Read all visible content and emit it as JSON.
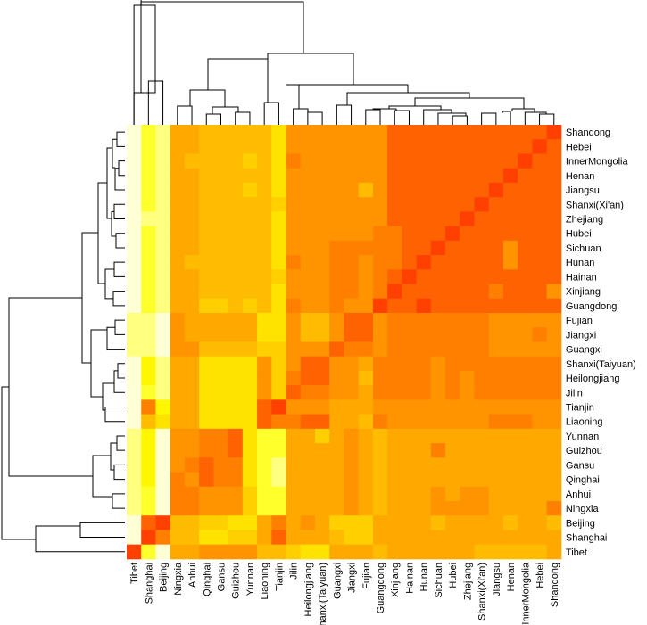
{
  "chart_data": {
    "type": "heatmap",
    "title": "",
    "xlabel": "",
    "ylabel": "",
    "row_labels": [
      "Shandong",
      "Hebei",
      "InnerMongolia",
      "Henan",
      "Jiangsu",
      "Shanxi(Xi'an)",
      "Zhejiang",
      "Hubei",
      "Sichuan",
      "Hunan",
      "Hainan",
      "Xinjiang",
      "Guangdong",
      "Fujian",
      "Jiangxi",
      "Guangxi",
      "Shanxi(Taiyuan)",
      "Heilongjiang",
      "Jilin",
      "Tianjin",
      "Liaoning",
      "Yunnan",
      "Guizhou",
      "Gansu",
      "Qinghai",
      "Anhui",
      "Ningxia",
      "Beijing",
      "Shanghai",
      "Tibet"
    ],
    "col_labels": [
      "Tibet",
      "Shanghai",
      "Beijing",
      "Ningxia",
      "Anhui",
      "Qinghai",
      "Gansu",
      "Guizhou",
      "Yunnan",
      "Liaoning",
      "Tianjin",
      "Jilin",
      "Heilongjiang",
      "Shanxi(Taiyuan)",
      "Guangxi",
      "Jiangxi",
      "Fujian",
      "Guangdong",
      "Xinjiang",
      "Hainan",
      "Hunan",
      "Sichuan",
      "Hubei",
      "Zhejiang",
      "Shanxi(Xi'an)",
      "Jiangsu",
      "Henan",
      "InnerMongolia",
      "Hebei",
      "Shandong"
    ],
    "color_scale": [
      "#FF0000",
      "#FF4000",
      "#FF6200",
      "#FF8000",
      "#FF9400",
      "#FFA800",
      "#FFBC00",
      "#FFD000",
      "#FFE300",
      "#FFF700",
      "#FFFF2B",
      "#FFFF80",
      "#FFFFD5"
    ],
    "color_scale_note": "heat palette: 0 = red (most similar), 12 = pale yellow (least similar)",
    "values": [
      [
        12,
        10,
        11,
        5,
        5,
        6,
        6,
        6,
        6,
        6,
        8,
        4,
        4,
        4,
        4,
        4,
        4,
        4,
        2,
        2,
        2,
        2,
        2,
        2,
        2,
        2,
        2,
        2,
        2,
        1
      ],
      [
        12,
        10,
        11,
        5,
        5,
        6,
        6,
        6,
        6,
        6,
        8,
        4,
        4,
        4,
        4,
        4,
        4,
        4,
        2,
        2,
        2,
        2,
        2,
        2,
        2,
        2,
        2,
        2,
        1,
        2
      ],
      [
        12,
        10,
        11,
        5,
        6,
        6,
        6,
        6,
        7,
        6,
        8,
        3,
        4,
        4,
        4,
        4,
        4,
        4,
        2,
        2,
        2,
        2,
        2,
        2,
        2,
        2,
        2,
        1,
        2,
        2
      ],
      [
        12,
        10,
        11,
        5,
        5,
        6,
        6,
        6,
        6,
        6,
        8,
        4,
        4,
        4,
        4,
        4,
        4,
        4,
        2,
        2,
        2,
        2,
        2,
        2,
        2,
        2,
        1,
        2,
        2,
        2
      ],
      [
        12,
        10,
        11,
        5,
        5,
        6,
        6,
        6,
        7,
        6,
        8,
        4,
        4,
        4,
        4,
        4,
        6,
        4,
        2,
        2,
        2,
        2,
        2,
        2,
        2,
        1,
        2,
        2,
        2,
        2
      ],
      [
        12,
        10,
        11,
        5,
        5,
        6,
        6,
        6,
        6,
        6,
        7,
        4,
        4,
        4,
        4,
        4,
        4,
        4,
        2,
        2,
        2,
        2,
        2,
        2,
        1,
        2,
        2,
        2,
        2,
        2
      ],
      [
        12,
        11,
        11,
        5,
        5,
        6,
        6,
        6,
        6,
        6,
        8,
        4,
        4,
        4,
        4,
        4,
        4,
        4,
        2,
        2,
        2,
        2,
        2,
        1,
        2,
        2,
        2,
        2,
        2,
        2
      ],
      [
        12,
        10,
        11,
        5,
        5,
        6,
        6,
        6,
        6,
        6,
        8,
        4,
        4,
        4,
        4,
        4,
        4,
        3,
        3,
        2,
        2,
        2,
        1,
        2,
        2,
        2,
        2,
        2,
        2,
        2
      ],
      [
        12,
        10,
        11,
        5,
        5,
        6,
        6,
        6,
        6,
        6,
        8,
        4,
        4,
        4,
        3,
        3,
        3,
        3,
        3,
        2,
        2,
        1,
        2,
        2,
        2,
        2,
        4,
        2,
        2,
        2
      ],
      [
        12,
        10,
        11,
        5,
        6,
        6,
        6,
        6,
        6,
        6,
        8,
        3,
        4,
        4,
        3,
        3,
        4,
        3,
        3,
        2,
        1,
        2,
        2,
        2,
        2,
        2,
        4,
        2,
        2,
        2
      ],
      [
        12,
        10,
        11,
        5,
        5,
        6,
        6,
        6,
        6,
        6,
        7,
        4,
        4,
        4,
        3,
        3,
        4,
        3,
        2,
        1,
        2,
        2,
        2,
        2,
        2,
        2,
        2,
        2,
        2,
        2
      ],
      [
        12,
        10,
        11,
        5,
        5,
        6,
        6,
        6,
        6,
        6,
        8,
        4,
        4,
        4,
        3,
        3,
        4,
        3,
        1,
        2,
        2,
        2,
        2,
        2,
        2,
        3,
        2,
        2,
        2,
        4
      ],
      [
        12,
        10,
        11,
        5,
        5,
        7,
        7,
        6,
        7,
        6,
        8,
        3,
        4,
        4,
        3,
        4,
        4,
        1,
        2,
        2,
        1,
        2,
        2,
        2,
        2,
        2,
        2,
        2,
        2,
        2
      ],
      [
        11,
        11,
        12,
        4,
        5,
        5,
        5,
        5,
        5,
        8,
        8,
        4,
        6,
        6,
        4,
        2,
        2,
        4,
        3,
        3,
        3,
        3,
        3,
        3,
        3,
        4,
        4,
        4,
        4,
        4
      ],
      [
        11,
        11,
        12,
        4,
        5,
        5,
        5,
        5,
        5,
        8,
        8,
        4,
        6,
        6,
        4,
        2,
        2,
        4,
        3,
        3,
        3,
        3,
        3,
        3,
        3,
        4,
        4,
        4,
        3,
        4
      ],
      [
        11,
        11,
        12,
        4,
        4,
        6,
        6,
        6,
        6,
        7,
        7,
        4,
        4,
        4,
        2,
        3,
        3,
        4,
        3,
        3,
        3,
        3,
        3,
        3,
        3,
        4,
        4,
        4,
        4,
        4
      ],
      [
        12,
        9,
        11,
        5,
        5,
        8,
        8,
        8,
        8,
        4,
        7,
        4,
        2,
        2,
        4,
        4,
        5,
        3,
        3,
        3,
        3,
        4,
        3,
        3,
        3,
        3,
        3,
        3,
        3,
        3
      ],
      [
        12,
        9,
        11,
        5,
        5,
        8,
        8,
        8,
        8,
        4,
        7,
        3,
        2,
        2,
        4,
        4,
        6,
        3,
        3,
        3,
        3,
        4,
        3,
        4,
        3,
        3,
        3,
        3,
        3,
        3
      ],
      [
        12,
        10,
        11,
        5,
        5,
        8,
        8,
        8,
        8,
        4,
        7,
        2,
        3,
        3,
        4,
        4,
        5,
        3,
        3,
        3,
        3,
        4,
        3,
        4,
        3,
        3,
        3,
        3,
        3,
        3
      ],
      [
        12,
        3,
        9,
        5,
        5,
        8,
        8,
        8,
        8,
        2,
        1,
        4,
        4,
        4,
        5,
        5,
        5,
        4,
        4,
        4,
        4,
        4,
        4,
        4,
        4,
        4,
        4,
        4,
        4,
        4
      ],
      [
        12,
        6,
        8,
        5,
        5,
        8,
        8,
        8,
        8,
        2,
        3,
        3,
        2,
        2,
        5,
        5,
        6,
        3,
        4,
        4,
        4,
        4,
        4,
        4,
        4,
        3,
        3,
        3,
        4,
        4
      ],
      [
        11,
        9,
        12,
        4,
        4,
        3,
        3,
        2,
        8,
        10,
        10,
        5,
        5,
        7,
        5,
        4,
        5,
        6,
        5,
        5,
        5,
        5,
        5,
        5,
        5,
        5,
        5,
        5,
        5,
        5
      ],
      [
        11,
        9,
        12,
        4,
        4,
        3,
        3,
        2,
        8,
        10,
        10,
        5,
        5,
        5,
        5,
        4,
        5,
        6,
        5,
        5,
        5,
        3,
        5,
        5,
        5,
        5,
        5,
        5,
        5,
        5
      ],
      [
        11,
        9,
        12,
        4,
        3,
        2,
        3,
        3,
        8,
        10,
        11,
        5,
        5,
        5,
        5,
        4,
        5,
        6,
        5,
        5,
        5,
        5,
        5,
        5,
        5,
        5,
        5,
        5,
        5,
        5
      ],
      [
        11,
        9,
        12,
        3,
        4,
        2,
        3,
        3,
        8,
        10,
        11,
        5,
        5,
        5,
        5,
        4,
        5,
        6,
        5,
        5,
        5,
        5,
        5,
        5,
        5,
        5,
        5,
        5,
        5,
        5
      ],
      [
        11,
        10,
        12,
        3,
        3,
        4,
        4,
        4,
        7,
        10,
        10,
        5,
        5,
        5,
        5,
        4,
        5,
        6,
        5,
        5,
        5,
        4,
        5,
        4,
        4,
        5,
        5,
        5,
        5,
        5
      ],
      [
        11,
        10,
        12,
        3,
        3,
        4,
        4,
        4,
        7,
        10,
        10,
        5,
        5,
        5,
        5,
        4,
        5,
        6,
        5,
        5,
        5,
        4,
        4,
        4,
        4,
        5,
        5,
        5,
        5,
        3
      ],
      [
        12,
        2,
        1,
        6,
        6,
        7,
        7,
        8,
        8,
        5,
        3,
        5,
        4,
        5,
        7,
        7,
        7,
        5,
        5,
        5,
        5,
        6,
        5,
        5,
        5,
        5,
        6,
        5,
        5,
        6
      ],
      [
        12,
        1,
        3,
        6,
        6,
        8,
        8,
        7,
        7,
        5,
        2,
        5,
        5,
        5,
        6,
        7,
        7,
        5,
        5,
        5,
        5,
        5,
        5,
        5,
        5,
        5,
        5,
        5,
        5,
        5
      ],
      [
        1,
        10,
        12,
        5,
        5,
        4,
        4,
        4,
        4,
        6,
        6,
        7,
        8,
        8,
        5,
        5,
        5,
        6,
        5,
        5,
        5,
        5,
        5,
        5,
        6,
        6,
        6,
        6,
        6,
        5
      ]
    ],
    "grid": false,
    "legend": "none",
    "dendrograms": [
      "top (columns)",
      "left (rows)"
    ]
  }
}
